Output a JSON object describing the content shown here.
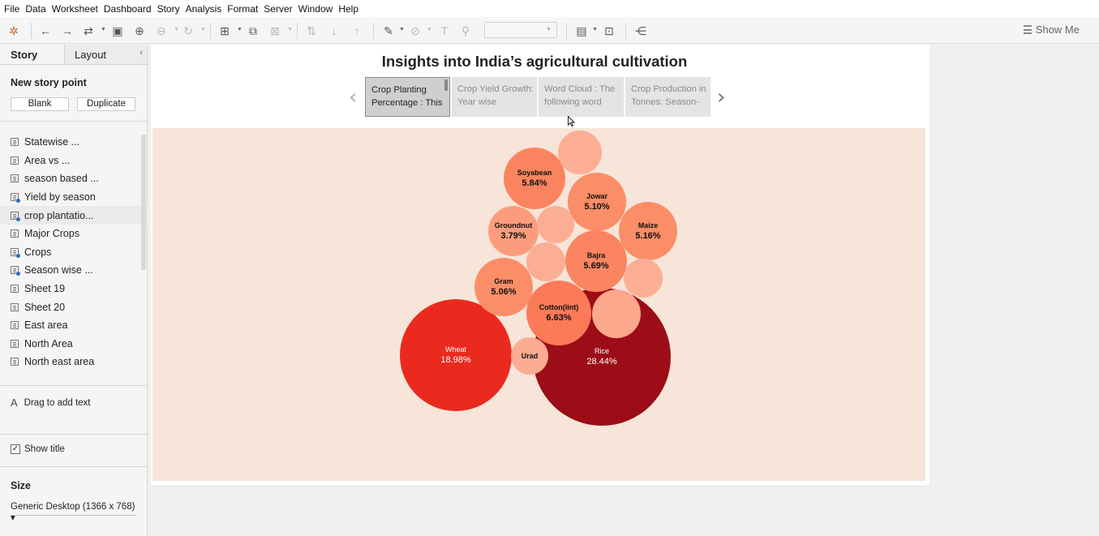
{
  "menubar": [
    "File",
    "Data",
    "Worksheet",
    "Dashboard",
    "Story",
    "Analysis",
    "Format",
    "Server",
    "Window",
    "Help"
  ],
  "toolbar": {
    "show_me_label": "Show Me",
    "fit_select_value": ""
  },
  "left_pane": {
    "tabs": {
      "story": "Story",
      "layout": "Layout",
      "collapse": "‹"
    },
    "new_story_point": "New story point",
    "blank_button": "Blank",
    "duplicate_button": "Duplicate",
    "sheets": [
      {
        "label": "Statewise ...",
        "type": "sheet"
      },
      {
        "label": "Area vs ...",
        "type": "sheet"
      },
      {
        "label": "season based ...",
        "type": "sheet"
      },
      {
        "label": "Yield by season",
        "type": "dashboard"
      },
      {
        "label": "crop plantatio...",
        "type": "dashboard"
      },
      {
        "label": "Major Crops",
        "type": "sheet"
      },
      {
        "label": "Crops",
        "type": "dashboard"
      },
      {
        "label": "Season wise ...",
        "type": "dashboard"
      },
      {
        "label": "Sheet 19",
        "type": "sheet"
      },
      {
        "label": "Sheet 20",
        "type": "sheet"
      },
      {
        "label": "East area",
        "type": "sheet"
      },
      {
        "label": "North Area",
        "type": "sheet"
      },
      {
        "label": "North east area",
        "type": "sheet"
      }
    ],
    "drag_text": "Drag to add text",
    "show_title": "Show title",
    "show_title_checked": "✓",
    "size_title": "Size",
    "size_value": "Generic Desktop (1366 x 768) ▾"
  },
  "story": {
    "title": "Insights into India’s agricultural cultivation",
    "nav_prev": "‹",
    "nav_next": "›",
    "points": [
      {
        "text": "Crop Planting Percentage : This",
        "active": true
      },
      {
        "text": "Crop Yield Growth: Year wise",
        "active": false
      },
      {
        "text": "Word Cloud : The following word",
        "active": false
      },
      {
        "text": "Crop Production in Tonnes: Season-",
        "active": false
      }
    ]
  },
  "chart_data": {
    "type": "packed-bubble",
    "measure": "Crop planting percentage",
    "items": [
      {
        "name": "Rice",
        "value": 28.44,
        "label": "28.44%",
        "color": "#9c0d17"
      },
      {
        "name": "Wheat",
        "value": 18.98,
        "label": "18.98%",
        "color": "#ea2a1f"
      },
      {
        "name": "Cotton(lint)",
        "value": 6.63,
        "label": "6.63%",
        "color": "#fb7a58"
      },
      {
        "name": "Soyabean",
        "value": 5.84,
        "label": "5.84%",
        "color": "#fb8460"
      },
      {
        "name": "Bajra",
        "value": 5.69,
        "label": "5.69%",
        "color": "#fb8561"
      },
      {
        "name": "Maize",
        "value": 5.16,
        "label": "5.16%",
        "color": "#fb8d68"
      },
      {
        "name": "Jowar",
        "value": 5.1,
        "label": "5.10%",
        "color": "#fb8d68"
      },
      {
        "name": "Gram",
        "value": 5.06,
        "label": "5.06%",
        "color": "#fb8e69"
      },
      {
        "name": "Groundnut",
        "value": 3.79,
        "label": "3.79%",
        "color": "#fc9c7c"
      },
      {
        "name": "Urad",
        "value": null,
        "label": "",
        "color": "#fcac92"
      },
      {
        "name": "",
        "value": null,
        "label": "",
        "color": "#fba88c"
      },
      {
        "name": "",
        "value": null,
        "label": "",
        "color": "#fcae94"
      },
      {
        "name": "",
        "value": null,
        "label": "",
        "color": "#fcae94"
      },
      {
        "name": "",
        "value": null,
        "label": "",
        "color": "#fcae94"
      },
      {
        "name": "",
        "value": null,
        "label": "",
        "color": "#fcae94"
      }
    ]
  }
}
